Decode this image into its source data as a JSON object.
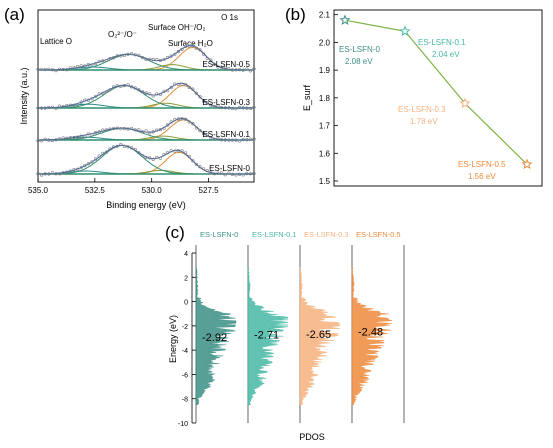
{
  "panel_a": {
    "label": "(a)",
    "corner_label": "O 1s",
    "xlabel": "Binding energy (eV)",
    "ylabel": "Intensity (a.u.)",
    "peak_labels": {
      "lattice": "Lattice O",
      "o_species": "O₂²⁻/O⁻",
      "surface_oh": "Surface OH⁻/O₂",
      "surface_h2o": "Surface H₂O"
    }
  },
  "panel_b": {
    "label": "(b)",
    "ylabel": "E_surf"
  },
  "panel_c": {
    "label": "(c)",
    "xlabel": "PDOS",
    "ylabel": "Energy (eV)"
  },
  "colors": {
    "experimental": "#7c7c7c",
    "fit_envelope": "#3a5fb0",
    "lattice_component": "#e2913a",
    "o_species_component": "#8a9a34",
    "surface_component": "#2f8f6f",
    "water_component": "#2a8a8a",
    "trend_line": "#7cb342",
    "lsfn0": "#3b8f85",
    "lsfn01": "#48b9a6",
    "lsfn03": "#f6b27e",
    "lsfn05": "#ee8a3c"
  },
  "chart_data": [
    {
      "type": "line",
      "panel": "(a)",
      "title": "O 1s",
      "xlabel": "Binding energy (eV)",
      "ylabel": "Intensity (a.u.)",
      "xlim": [
        535.0,
        525.5
      ],
      "x_reversed": true,
      "xticks": [
        "527.5",
        "530.0",
        "532.5",
        "535.0"
      ],
      "series": [
        {
          "name": "ES-LSFN-0.5",
          "lattice_peak": 528.2,
          "o_species_peak": 529.1,
          "surface_oh_peak": 531.0,
          "surface_h2o_peak": 532.6,
          "lattice_amp": 0.75,
          "o_species_amp": 0.18,
          "surface_oh_amp": 0.52,
          "surface_h2o_amp": 0.1
        },
        {
          "name": "ES-LSFN-0.3",
          "lattice_peak": 528.6,
          "o_species_peak": 529.4,
          "surface_oh_peak": 531.2,
          "surface_h2o_peak": 532.8,
          "lattice_amp": 0.7,
          "o_species_amp": 0.15,
          "surface_oh_amp": 0.7,
          "surface_h2o_amp": 0.12
        },
        {
          "name": "ES-LSFN-0.1",
          "lattice_peak": 528.6,
          "o_species_peak": 529.5,
          "surface_oh_peak": 531.3,
          "surface_h2o_peak": 532.9,
          "lattice_amp": 0.72,
          "o_species_amp": 0.14,
          "surface_oh_amp": 0.42,
          "surface_h2o_amp": 0.1
        },
        {
          "name": "ES-LSFN-0",
          "lattice_peak": 528.8,
          "o_species_peak": 529.6,
          "surface_oh_peak": 531.3,
          "surface_h2o_peak": 532.9,
          "lattice_amp": 0.72,
          "o_species_amp": 0.12,
          "surface_oh_amp": 0.95,
          "surface_h2o_amp": 0.1
        }
      ]
    },
    {
      "type": "scatter",
      "panel": "(b)",
      "xlabel": "",
      "ylabel": "E_surf",
      "ylim": [
        1.5,
        2.1
      ],
      "yticks": [
        "1.5",
        "1.6",
        "1.7",
        "1.8",
        "1.9",
        "2.0",
        "2.1"
      ],
      "points": [
        {
          "name": "ES-LSFN-0",
          "value": 2.08,
          "label": "2.08 eV",
          "color": "#3b8f85"
        },
        {
          "name": "ES-LSFN-0.1",
          "value": 2.04,
          "label": "2.04 eV",
          "color": "#48b9a6"
        },
        {
          "name": "ES-LSFN-0.3",
          "value": 1.78,
          "label": "1.78 eV",
          "color": "#f6b27e"
        },
        {
          "name": "ES-LSFN-0.5",
          "value": 1.56,
          "label": "1.56 eV",
          "color": "#ee8a3c"
        }
      ]
    },
    {
      "type": "area",
      "panel": "(c)",
      "xlabel": "PDOS",
      "ylabel": "Energy (eV)",
      "ylim": [
        -10,
        4
      ],
      "yticks": [
        "4",
        "2",
        "0",
        "-2",
        "-4",
        "-6",
        "-8",
        "-10"
      ],
      "series": [
        {
          "name": "ES-LSFN-0",
          "band_center": -2.92,
          "band_label": "-2.92",
          "color": "#3b8f85"
        },
        {
          "name": "ES-LSFN-0.1",
          "band_center": -2.71,
          "band_label": "-2.71",
          "color": "#48b9a6"
        },
        {
          "name": "ES-LSFN-0.3",
          "band_center": -2.65,
          "band_label": "-2.65",
          "color": "#f6b27e"
        },
        {
          "name": "ES-LSFN-0.5",
          "band_center": -2.48,
          "band_label": "-2.48",
          "color": "#ee8a3c"
        }
      ]
    }
  ]
}
